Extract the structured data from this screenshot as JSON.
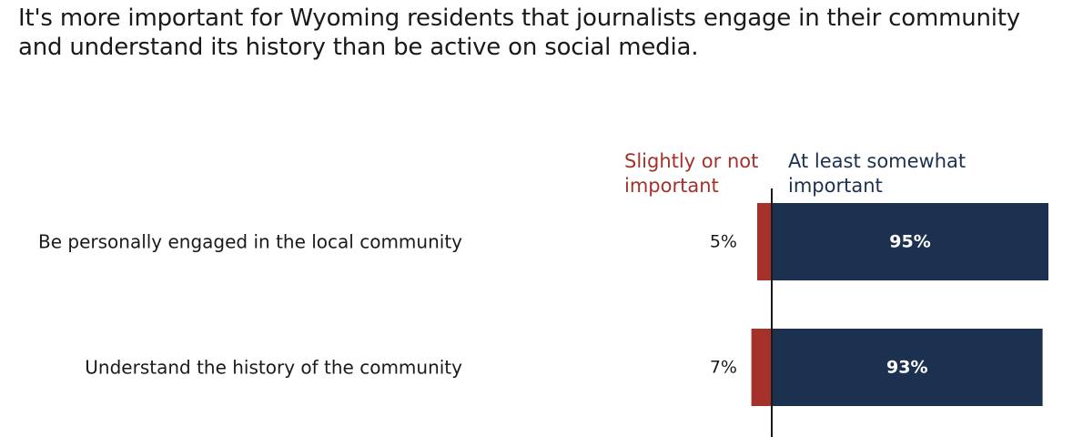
{
  "title": {
    "line1": "It's more important for Wyoming residents that journalists engage in their community",
    "line2": "and understand its history than be active on social media."
  },
  "colors": {
    "negative": "#a4322a",
    "positive": "#1c3150",
    "baseline": "#1a1a1a"
  },
  "chart_data": {
    "type": "bar",
    "orientation": "horizontal-diverging",
    "title": "It's more important for Wyoming residents that journalists engage in their community and understand its history than be active on social media.",
    "categories": [
      "Be personally engaged in the local community",
      "Understand the history of the community"
    ],
    "series": [
      {
        "name": "Slightly or not important",
        "values": [
          5,
          7
        ],
        "labels": [
          "5%",
          "7%"
        ],
        "color": "#a4322a"
      },
      {
        "name": "At least somewhat important",
        "values": [
          95,
          93
        ],
        "labels": [
          "95%",
          "93%"
        ],
        "color": "#1c3150"
      }
    ],
    "legend": {
      "negative_line1": "Slightly or not",
      "negative_line2": "important",
      "positive_line1": "At least somewhat",
      "positive_line2": "important",
      "placement": "top-above-bars"
    },
    "xlabel": "",
    "ylabel": "",
    "grid": false
  }
}
